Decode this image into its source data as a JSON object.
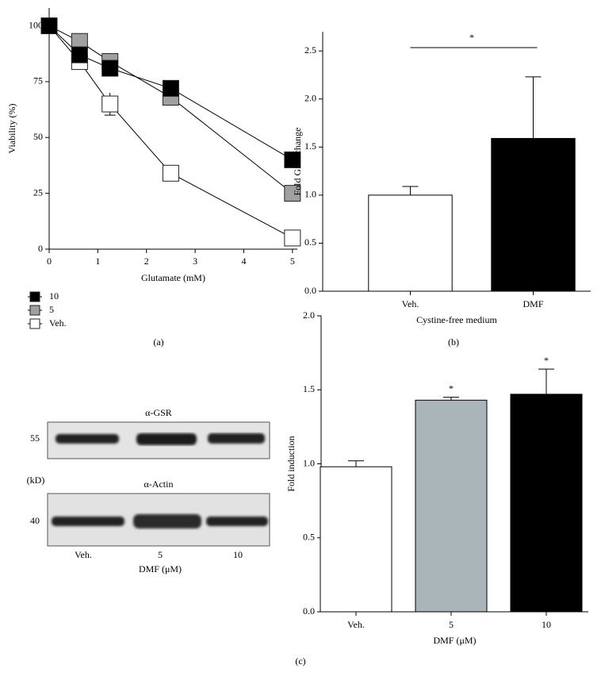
{
  "chart_data": [
    {
      "type": "line",
      "xlabel": "Glutamate (mM)",
      "ylabel": "Viability (%)",
      "x": [
        0,
        0.625,
        1.25,
        2.5,
        5
      ],
      "series": [
        {
          "name": "10",
          "color": "#000000",
          "values": [
            100,
            87,
            81,
            72,
            40
          ]
        },
        {
          "name": "5",
          "color": "#a0a0a0",
          "values": [
            100,
            93,
            84,
            68,
            25
          ]
        },
        {
          "name": "Veh.",
          "color": "#ffffff",
          "values": [
            100,
            84,
            65,
            34,
            5
          ],
          "errors": [
            1,
            1,
            5,
            3,
            1
          ]
        }
      ],
      "xlim": [
        0,
        5.1
      ],
      "xticks": [
        0,
        1,
        2,
        3,
        4,
        5
      ],
      "ylim": [
        0,
        108
      ],
      "yticks": [
        0,
        25,
        50,
        75,
        100
      ],
      "legend": "bottom-left"
    },
    {
      "type": "bar",
      "xlabel": "Cystine-free medium",
      "ylabel": "Fold GSH change",
      "categories": [
        "Veh.",
        "DMF"
      ],
      "values": [
        1.0,
        1.59
      ],
      "errors": [
        0.09,
        0.64
      ],
      "colors": [
        "#ffffff",
        "#000000"
      ],
      "significance": "*",
      "ylim": [
        0,
        2.7
      ],
      "yticks": [
        {
          "value": 0,
          "label": "0.0"
        },
        0.5,
        {
          "value": 1,
          "label": "1.0"
        },
        1.5,
        {
          "value": 2,
          "label": "2.0"
        },
        2.5
      ]
    },
    {
      "type": "bar",
      "xlabel": "DMF (μM)",
      "ylabel": "Fold induction",
      "categories": [
        "Veh.",
        "5",
        "10"
      ],
      "values": [
        0.98,
        1.43,
        1.47
      ],
      "errors": [
        0.04,
        0.02,
        0.17
      ],
      "colors": [
        "#ffffff",
        "#a9b5b9",
        "#000000"
      ],
      "annotations": [
        null,
        "*",
        "*"
      ],
      "ylim": [
        0,
        2.0
      ],
      "yticks": [
        {
          "value": 0,
          "label": "0.0"
        },
        0.5,
        {
          "value": 1,
          "label": "1.0"
        },
        1.5,
        {
          "value": 2,
          "label": "2.0"
        }
      ]
    }
  ],
  "blot": {
    "top_label": "α-GSR",
    "bottom_label": "α-Actin",
    "top_marker": "55",
    "bottom_marker": "40",
    "unit": "(kD)",
    "lanes": [
      "Veh.",
      "5",
      "10"
    ],
    "xlabel": "DMF (μM)"
  },
  "panel_labels": [
    "(a)",
    "(b)",
    "(c)"
  ]
}
